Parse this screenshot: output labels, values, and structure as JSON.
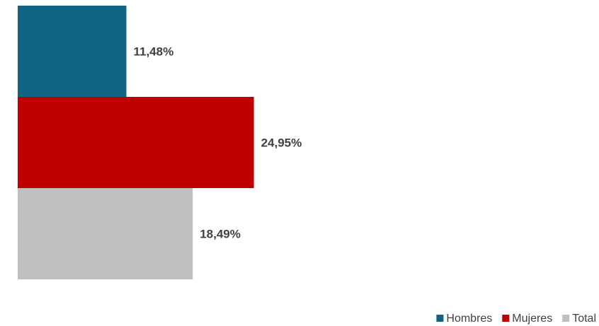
{
  "chart_data": {
    "type": "bar",
    "orientation": "horizontal",
    "title": "",
    "xlabel": "",
    "ylabel": "",
    "xlim": [
      0,
      30
    ],
    "grid": false,
    "legend_position": "bottom-right",
    "series": [
      {
        "name": "Hombres",
        "value": 11.48,
        "label": "11,48%",
        "color": "#0E6482"
      },
      {
        "name": "Mujeres",
        "value": 24.95,
        "label": "24,95%",
        "color": "#C00000"
      },
      {
        "name": "Total",
        "value": 18.49,
        "label": "18,49%",
        "color": "#BFBFBF"
      }
    ]
  }
}
